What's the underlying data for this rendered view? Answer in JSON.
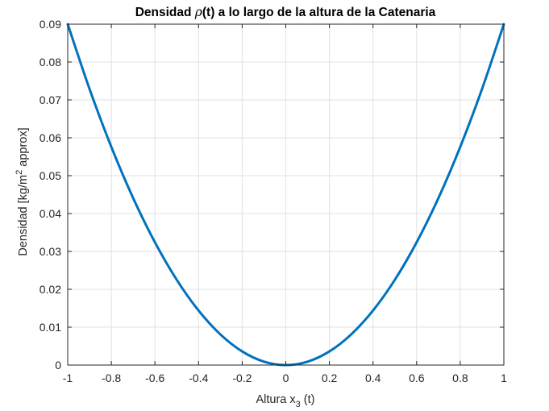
{
  "chart_data": {
    "type": "line",
    "title_prefix": "Densidad ",
    "title_symbol": "ρ",
    "title_suffix": "(t) a lo largo de la altura de la Catenaria",
    "xlabel_main": "Altura x",
    "xlabel_sub": "3",
    "xlabel_tail": " (t)",
    "ylabel_main": "Densidad [kg/m",
    "ylabel_sup": "2",
    "ylabel_tail": " approx]",
    "xlim": [
      -1,
      1
    ],
    "ylim": [
      0,
      0.09
    ],
    "xticks": [
      "-1",
      "-0.8",
      "-0.6",
      "-0.4",
      "-0.2",
      "0",
      "0.2",
      "0.4",
      "0.6",
      "0.8",
      "1"
    ],
    "yticks": [
      "0",
      "0.01",
      "0.02",
      "0.03",
      "0.04",
      "0.05",
      "0.06",
      "0.07",
      "0.08",
      "0.09"
    ],
    "grid": true,
    "series": [
      {
        "color": "#0072bd",
        "x": [
          -1,
          -0.9,
          -0.8,
          -0.7,
          -0.6,
          -0.5,
          -0.4,
          -0.3,
          -0.2,
          -0.1,
          0,
          0.1,
          0.2,
          0.3,
          0.4,
          0.5,
          0.6,
          0.7,
          0.8,
          0.9,
          1
        ],
        "y": [
          0.09,
          0.0729,
          0.0576,
          0.0441,
          0.0324,
          0.0225,
          0.0144,
          0.0081,
          0.0036,
          0.0009,
          0,
          0.0009,
          0.0036,
          0.0081,
          0.0144,
          0.0225,
          0.0324,
          0.0441,
          0.0576,
          0.0729,
          0.09
        ]
      }
    ]
  }
}
